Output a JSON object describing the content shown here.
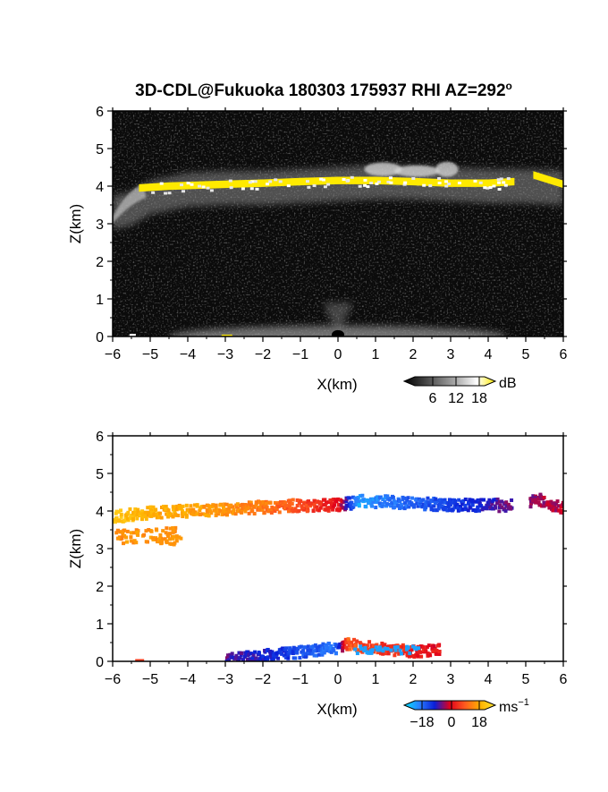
{
  "figure_title": "3D-CDL@Fukuoka 180303 175937 RHI AZ=292",
  "title_superscript": "o",
  "colors": {
    "background": "#ffffff",
    "panel_background": "#0b0b0b",
    "cloud_layer_echo": "#ffea00",
    "velocity_palette": [
      "#00e4ff",
      "#2a7fff",
      "#0a1fd8",
      "#e0001b",
      "#ff5a1f",
      "#ffb000",
      "#ffe832"
    ]
  },
  "chart_data": [
    {
      "type": "heatmap",
      "name": "backscatter-intensity",
      "xlabel": "X(km)",
      "ylabel": "Z(km)",
      "xlim": [
        -6,
        6
      ],
      "ylim": [
        0,
        6
      ],
      "xticks": [
        -6,
        -5,
        -4,
        -3,
        -2,
        -1,
        0,
        1,
        2,
        3,
        4,
        5,
        6
      ],
      "yticks": [
        0,
        1,
        2,
        3,
        4,
        5,
        6
      ],
      "grid": false,
      "colorbar": {
        "unit": "dB",
        "tick_values": [
          6,
          12,
          18
        ],
        "colors": [
          "#000000",
          "#3a3a3a",
          "#777777",
          "#b5b5b5",
          "#ffffff",
          "#ffea00"
        ]
      },
      "layer": {
        "description_values": "yellow band of strongest echo (cloud base)",
        "x": [
          -5.3,
          -4.5,
          -3,
          -2,
          -1,
          0,
          1,
          2,
          3,
          4,
          4.7
        ],
        "z": [
          3.95,
          4.0,
          4.05,
          4.08,
          4.12,
          4.15,
          4.15,
          4.12,
          4.08,
          4.08,
          4.12
        ],
        "x2": [
          5.2,
          6.0
        ],
        "z2": [
          4.3,
          4.05
        ]
      },
      "haze": {
        "x": [
          -6,
          -5.5,
          -5,
          -4.5,
          -4,
          -3,
          -2,
          -1,
          0,
          1,
          2,
          3,
          4,
          5,
          6
        ],
        "z": [
          3.4,
          3.5,
          3.8,
          3.9,
          4.0,
          4.05,
          4.05,
          4.1,
          4.15,
          4.2,
          4.2,
          4.15,
          4.1,
          4.1,
          4.05
        ]
      }
    },
    {
      "type": "heatmap",
      "name": "doppler-velocity",
      "xlabel": "X(km)",
      "ylabel": "Z(km)",
      "xlim": [
        -6,
        6
      ],
      "ylim": [
        0,
        6
      ],
      "xticks": [
        -6,
        -5,
        -4,
        -3,
        -2,
        -1,
        0,
        1,
        2,
        3,
        4,
        5,
        6
      ],
      "yticks": [
        0,
        1,
        2,
        3,
        4,
        5,
        6
      ],
      "grid": false,
      "colorbar": {
        "unit": "ms",
        "unit_superscript": "−1",
        "tick_values": [
          "−18",
          "0",
          "18"
        ],
        "range": [
          -18,
          18
        ],
        "colors": [
          "#00e4ff",
          "#2a7fff",
          "#0a1fd8",
          "#e0001b",
          "#ff5a1f",
          "#ffb000",
          "#ffe832"
        ]
      },
      "upper_layer": {
        "x": [
          -6,
          -5.5,
          -5,
          -4,
          -3,
          -2,
          -1,
          -0.5,
          0,
          0.5,
          1,
          2,
          3,
          4,
          4.7,
          5.3,
          6
        ],
        "z": [
          3.9,
          3.95,
          4.0,
          4.05,
          4.1,
          4.15,
          4.2,
          4.2,
          4.2,
          4.3,
          4.3,
          4.25,
          4.2,
          4.2,
          4.2,
          4.35,
          4.1
        ],
        "velocity": [
          14,
          13,
          12,
          11,
          10,
          8,
          5,
          3,
          1,
          -14,
          -12,
          -10,
          -8,
          -5,
          -3,
          -2,
          -1
        ]
      },
      "lower_layer": {
        "x": [
          -3,
          -2.5,
          -2,
          -1.5,
          -1,
          -0.5,
          -0.1,
          0.2,
          0.5,
          1,
          1.5,
          2,
          2.5
        ],
        "z": [
          0.1,
          0.15,
          0.2,
          0.25,
          0.3,
          0.35,
          0.4,
          0.5,
          0.45,
          0.4,
          0.35,
          0.3,
          0.35
        ],
        "velocity": [
          -4,
          -5,
          -6,
          -7,
          -9,
          -10,
          -12,
          6,
          5,
          4,
          3,
          2,
          1
        ]
      }
    }
  ]
}
